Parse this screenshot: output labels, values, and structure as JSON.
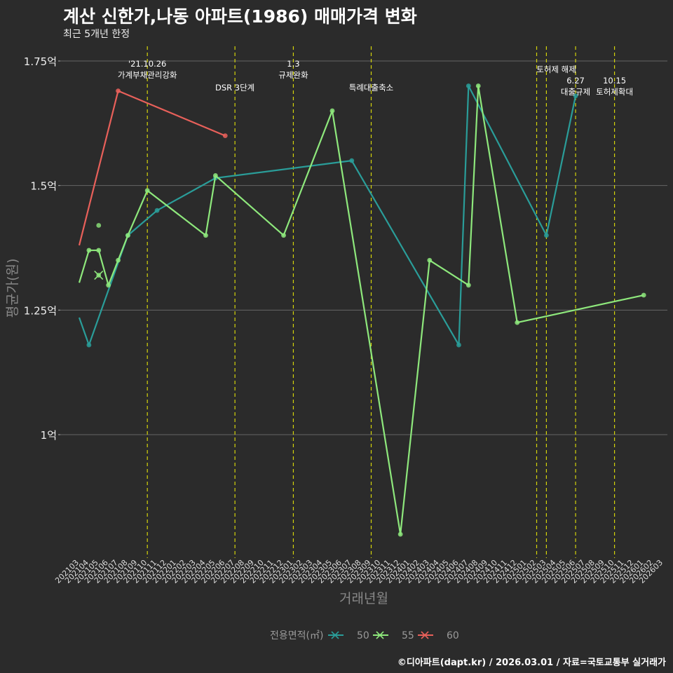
{
  "title": "계산 신한가,나동 아파트(1986) 매매가격 변화",
  "subtitle": "최근 5개년 한정",
  "caption": "©디아파트(dapt.kr) / 2026.03.01 / 자료=국토교통부 실거래가",
  "chart_data": {
    "type": "line",
    "xlabel": "거래년월",
    "ylabel": "평균가(원)",
    "ylim": [
      0.77,
      1.77
    ],
    "y_ticks": [
      {
        "value": 1.0,
        "label": "1억"
      },
      {
        "value": 1.25,
        "label": "1.25억"
      },
      {
        "value": 1.5,
        "label": "1.5억"
      },
      {
        "value": 1.75,
        "label": "1.75억"
      }
    ],
    "grid": true,
    "legend_title": "전용면적(㎡)",
    "legend_position": "bottom",
    "categories": [
      "202103",
      "202104",
      "202105",
      "202106",
      "202107",
      "202108",
      "202109",
      "202110",
      "202111",
      "202112",
      "202201",
      "202202",
      "202203",
      "202204",
      "202205",
      "202206",
      "202207",
      "202208",
      "202209",
      "202210",
      "202211",
      "202212",
      "202301",
      "202302",
      "202303",
      "202304",
      "202305",
      "202306",
      "202307",
      "202308",
      "202309",
      "202310",
      "202311",
      "202312",
      "202401",
      "202402",
      "202403",
      "202404",
      "202405",
      "202406",
      "202407",
      "202408",
      "202409",
      "202410",
      "202411",
      "202412",
      "202501",
      "202502",
      "202503",
      "202504",
      "202505",
      "202506",
      "202507",
      "202508",
      "202509",
      "202510",
      "202511",
      "202512",
      "202601",
      "202602",
      "202603"
    ],
    "series": [
      {
        "name": "50",
        "color": "#2a9d99",
        "points": [
          [
            "202103",
            1.235
          ],
          [
            "202104",
            1.18
          ],
          [
            "202108",
            1.4
          ],
          [
            "202111",
            1.45
          ],
          [
            "202205",
            1.515
          ],
          [
            "202307",
            1.55
          ],
          [
            "202406",
            1.18
          ],
          [
            "202407",
            1.7
          ],
          [
            "202503",
            1.4
          ],
          [
            "202506",
            1.68
          ]
        ]
      },
      {
        "name": "55",
        "color": "#8ee87c",
        "points": [
          [
            "202103",
            1.305
          ],
          [
            "202104",
            1.37
          ],
          [
            "202105",
            1.37
          ],
          [
            "202106",
            1.3
          ],
          [
            "202107",
            1.35
          ],
          [
            "202108",
            1.4
          ],
          [
            "202110",
            1.49
          ],
          [
            "202204",
            1.4
          ],
          [
            "202205",
            1.52
          ],
          [
            "202212",
            1.4
          ],
          [
            "202305",
            1.65
          ],
          [
            "202312",
            0.8
          ],
          [
            "202403",
            1.35
          ],
          [
            "202407",
            1.3
          ],
          [
            "202408",
            1.7
          ],
          [
            "202412",
            1.225
          ],
          [
            "202601",
            1.28
          ]
        ]
      },
      {
        "name": "60",
        "color": "#e8605a",
        "points": [
          [
            "202103",
            1.38
          ],
          [
            "202107",
            1.69
          ],
          [
            "202206",
            1.6
          ]
        ]
      }
    ],
    "isolated_points": [
      {
        "category": "202105",
        "value": 1.42,
        "series": "55"
      }
    ],
    "crossed_points": [
      {
        "category": "202105",
        "value": 1.32,
        "series": "55"
      }
    ],
    "annotations": [
      {
        "category": "202110",
        "lines": [
          "'21.10.26",
          "가계부채관리강화"
        ],
        "level": 1
      },
      {
        "category": "202207",
        "lines": [
          "DSR 3단계"
        ],
        "level": 3
      },
      {
        "category": "202301",
        "lines": [
          "1.3",
          "규제완화"
        ],
        "level": 1
      },
      {
        "category": "202309",
        "lines": [
          "특례대출축소"
        ],
        "level": 3
      },
      {
        "category": "202502",
        "lines": [
          "토허제 해제"
        ],
        "level": 2,
        "anchor": "end"
      },
      {
        "category": "202503",
        "lines": [],
        "level": 2
      },
      {
        "category": "202506",
        "lines": [
          "6.27",
          "대출규제"
        ],
        "level": 2.7
      },
      {
        "category": "202510",
        "lines": [
          "10.15",
          "토허제확대"
        ],
        "level": 2.7
      }
    ]
  }
}
